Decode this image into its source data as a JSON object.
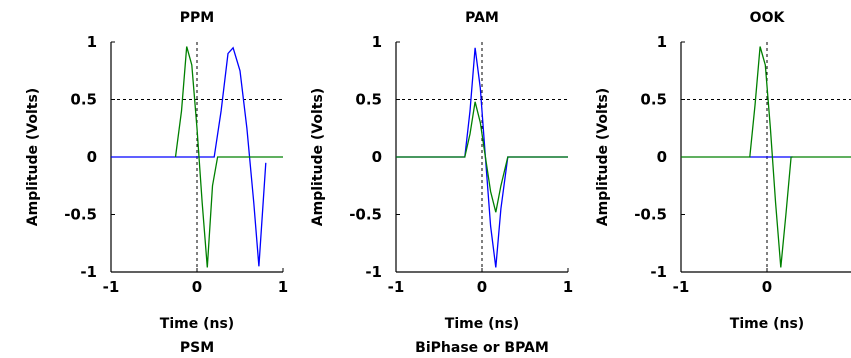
{
  "chart_data": [
    {
      "type": "line",
      "title": "PPM",
      "xlabel": "Time (ns)",
      "ylabel": "Amplitude (Volts)",
      "xlim": [
        -1,
        1
      ],
      "ylim": [
        -1,
        1
      ],
      "xticks": [
        "-1",
        "0",
        "1"
      ],
      "yticks": [
        "1",
        "0.5",
        "0",
        "-0.5",
        "-1"
      ],
      "reference_lines": {
        "x": 0,
        "y": 0.5,
        "style": "dashed"
      },
      "series": [
        {
          "color": "#0000ff",
          "x": [
            -1,
            0.1,
            0.2,
            0.28,
            0.36,
            0.42,
            0.5,
            0.58,
            0.66,
            0.72,
            0.8
          ],
          "y": [
            0,
            0,
            0,
            0.4,
            0.9,
            0.95,
            0.75,
            0.25,
            -0.4,
            -0.95,
            -0.05
          ]
        },
        {
          "color": "#008000",
          "x": [
            -0.25,
            -0.18,
            -0.12,
            -0.06,
            0.0,
            0.06,
            0.12,
            0.18,
            0.24,
            0.3,
            1
          ],
          "y": [
            0,
            0.4,
            0.96,
            0.8,
            0.25,
            -0.4,
            -0.96,
            -0.25,
            0,
            0,
            0
          ]
        }
      ]
    },
    {
      "type": "line",
      "title": "PAM",
      "xlabel": "Time (ns)",
      "ylabel": "Amplitude (Volts)",
      "xlim": [
        -1,
        1
      ],
      "ylim": [
        -1,
        1
      ],
      "xticks": [
        "-1",
        "0",
        "1"
      ],
      "yticks": [
        "1",
        "0.5",
        "0",
        "-0.5",
        "-1"
      ],
      "reference_lines": {
        "x": 0,
        "y": 0.5,
        "style": "dashed"
      },
      "series": [
        {
          "color": "#0000ff",
          "x": [
            -1,
            -0.2,
            -0.14,
            -0.08,
            -0.02,
            0.04,
            0.1,
            0.16,
            0.22,
            0.3,
            1
          ],
          "y": [
            0,
            0,
            0.4,
            0.95,
            0.6,
            0,
            -0.6,
            -0.96,
            -0.45,
            0,
            0
          ]
        },
        {
          "color": "#008000",
          "x": [
            -1,
            -0.2,
            -0.14,
            -0.08,
            -0.02,
            0.04,
            0.1,
            0.16,
            0.22,
            0.3,
            1
          ],
          "y": [
            0,
            0,
            0.2,
            0.48,
            0.3,
            0,
            -0.3,
            -0.48,
            -0.25,
            0,
            0
          ]
        }
      ]
    },
    {
      "type": "line",
      "title": "OOK",
      "xlabel": "Time (ns)",
      "ylabel": "Amplitude (Volts)",
      "xlim": [
        -1,
        1
      ],
      "ylim": [
        -1,
        1
      ],
      "xticks": [
        "-1",
        "0"
      ],
      "yticks": [
        "1",
        "0.5",
        "0",
        "-0.5",
        "-1"
      ],
      "reference_lines": {
        "x": 0,
        "y": 0.5,
        "style": "dashed"
      },
      "series": [
        {
          "color": "#0000ff",
          "x": [
            -0.2,
            0.3
          ],
          "y": [
            0,
            0
          ]
        },
        {
          "color": "#008000",
          "x": [
            -1,
            -0.2,
            -0.14,
            -0.08,
            -0.02,
            0.04,
            0.1,
            0.16,
            0.22,
            0.28,
            1
          ],
          "y": [
            0,
            0,
            0.45,
            0.96,
            0.8,
            0.25,
            -0.4,
            -0.96,
            -0.5,
            0,
            0
          ]
        }
      ]
    }
  ],
  "bottom_titles": [
    "PSM",
    "BiPhase or BPAM"
  ]
}
